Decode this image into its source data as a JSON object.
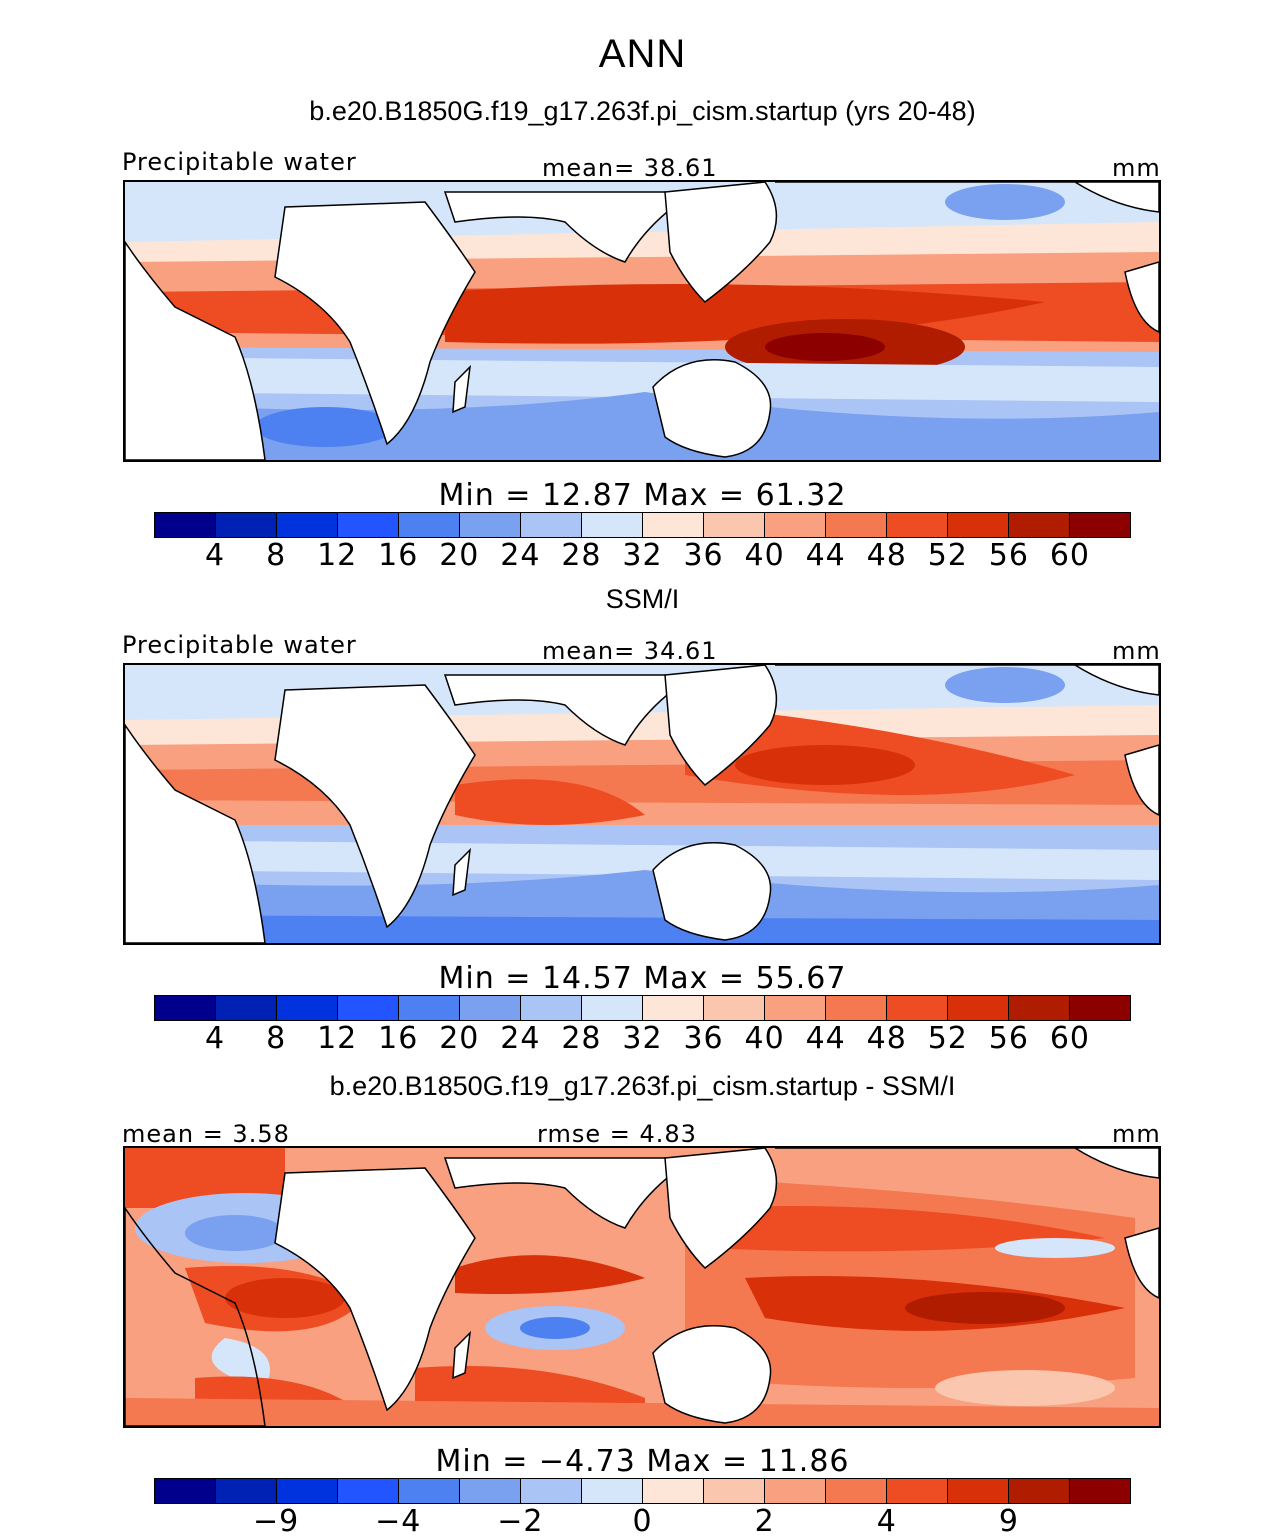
{
  "title": "ANN",
  "colors": [
    "#00008c",
    "#0022b4",
    "#0033dd",
    "#2255ff",
    "#4d80f0",
    "#7aa0f0",
    "#aac4f5",
    "#d6e6fa",
    "#fde6d8",
    "#fbc6ae",
    "#f8a080",
    "#f47850",
    "#ee4c22",
    "#d83008",
    "#b01c00",
    "#8c0000"
  ],
  "land_color": "#ffffff",
  "panels": [
    {
      "title": "b.e20.B1850G.f19_g17.263f.pi_cism.startup (yrs 20-48)",
      "left_label": "Precipitable water",
      "center_label": "mean=  38.61",
      "right_label": "mm",
      "minmax": "Min =   12.87  Max =   61.32",
      "tick_labels": [
        "4",
        "8",
        "12",
        "16",
        "20",
        "24",
        "28",
        "32",
        "36",
        "40",
        "44",
        "48",
        "52",
        "56",
        "60"
      ]
    },
    {
      "title": "SSM/I",
      "left_label": "Precipitable water",
      "center_label": "mean=  34.61",
      "right_label": "mm",
      "minmax": "Min =   14.57  Max =   55.67",
      "tick_labels": [
        "4",
        "8",
        "12",
        "16",
        "20",
        "24",
        "28",
        "32",
        "36",
        "40",
        "44",
        "48",
        "52",
        "56",
        "60"
      ]
    },
    {
      "title": "b.e20.B1850G.f19_g17.263f.pi_cism.startup - SSM/I",
      "left_label": "mean =    3.58",
      "center_label": "rmse =    4.83",
      "right_label": "mm",
      "minmax": "Min =  −4.73  Max =   11.86",
      "tick_labels": [
        "−9",
        "−4",
        "−2",
        "0",
        "2",
        "4",
        "9"
      ]
    }
  ]
}
